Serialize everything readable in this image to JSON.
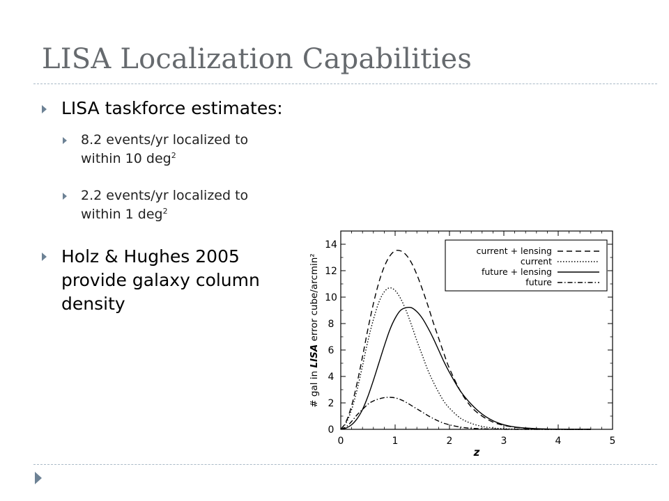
{
  "slide": {
    "title": "LISA Localization Capabilities",
    "bullets": [
      {
        "text": "LISA taskforce estimates:",
        "sub": [
          {
            "line1": "8.2 events/yr localized to",
            "line2": "within 10 deg",
            "sup": "2"
          },
          {
            "line1": "2.2 events/yr localized to",
            "line2": "within 1 deg",
            "sup": "2"
          }
        ]
      },
      {
        "lines": [
          "Holz & Hughes 2005",
          "provide galaxy column",
          "density"
        ]
      }
    ],
    "accent_color": "#6d8295",
    "title_color": "#666a6e"
  },
  "chart_data": {
    "type": "line",
    "xlabel": "z",
    "ylabel": "# gal in LISA error cube/arcmin²",
    "xlim": [
      0,
      5
    ],
    "ylim": [
      0,
      15
    ],
    "xticks": [
      0,
      1,
      2,
      3,
      4,
      5
    ],
    "yticks": [
      0,
      2,
      4,
      6,
      8,
      10,
      12,
      14
    ],
    "legend_position": "top-right",
    "x": [
      0,
      0.1,
      0.2,
      0.3,
      0.4,
      0.5,
      0.6,
      0.7,
      0.8,
      0.9,
      1.0,
      1.1,
      1.2,
      1.3,
      1.4,
      1.5,
      1.6,
      1.7,
      1.8,
      1.9,
      2.0,
      2.2,
      2.4,
      2.6,
      2.8,
      3.0,
      3.2,
      3.4,
      3.6,
      3.8,
      4.0,
      4.2,
      4.4,
      4.6
    ],
    "series": [
      {
        "name": "current + lensing",
        "dash": "8,5",
        "values": [
          0,
          0.6,
          1.8,
          3.5,
          5.5,
          7.6,
          9.5,
          11.1,
          12.3,
          13.1,
          13.5,
          13.5,
          13.2,
          12.6,
          11.7,
          10.6,
          9.4,
          8.1,
          6.9,
          5.7,
          4.6,
          2.9,
          1.7,
          1.0,
          0.55,
          0.3,
          0.16,
          0.08,
          0.04,
          0.02,
          0.01,
          0.0,
          0.0,
          0.0
        ]
      },
      {
        "name": "current",
        "dash": "1.5,2.5",
        "values": [
          0,
          0.5,
          1.5,
          3.0,
          4.8,
          6.7,
          8.3,
          9.6,
          10.4,
          10.7,
          10.5,
          9.9,
          9.0,
          7.9,
          6.7,
          5.6,
          4.5,
          3.6,
          2.8,
          2.1,
          1.6,
          0.85,
          0.45,
          0.22,
          0.1,
          0.05,
          0.02,
          0.0,
          0.0,
          0.0,
          0.0,
          0.0,
          0.0,
          0.0
        ]
      },
      {
        "name": "future + lensing",
        "dash": "",
        "values": [
          0,
          0.1,
          0.35,
          0.8,
          1.5,
          2.5,
          3.7,
          5.0,
          6.3,
          7.5,
          8.4,
          9.0,
          9.2,
          9.2,
          8.9,
          8.4,
          7.7,
          6.9,
          6.0,
          5.1,
          4.3,
          2.9,
          1.9,
          1.15,
          0.65,
          0.35,
          0.18,
          0.1,
          0.05,
          0.02,
          0.01,
          0.0,
          0.0,
          0.0
        ]
      },
      {
        "name": "future",
        "dash": "7,3,1.5,3",
        "values": [
          0,
          0.2,
          0.6,
          1.1,
          1.5,
          1.9,
          2.15,
          2.3,
          2.4,
          2.42,
          2.38,
          2.25,
          2.05,
          1.8,
          1.55,
          1.3,
          1.05,
          0.82,
          0.62,
          0.46,
          0.34,
          0.17,
          0.08,
          0.04,
          0.02,
          0.0,
          0.0,
          0.0,
          0.0,
          0.0,
          0.0,
          0.0,
          0.0,
          0.0
        ]
      }
    ]
  }
}
